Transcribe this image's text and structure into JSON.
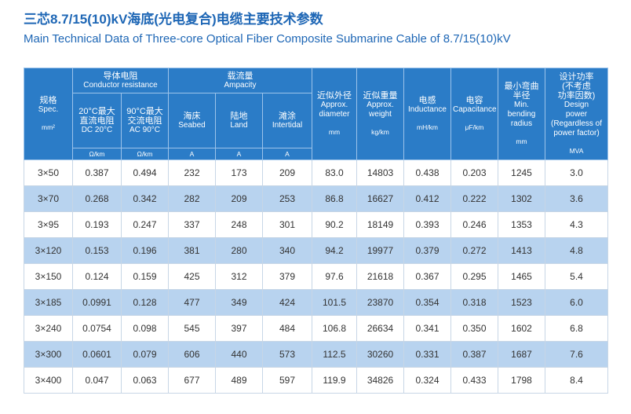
{
  "title_cn": "三芯8.7/15(10)kV海底(光电复合)电缆主要技术参数",
  "title_en": "Main Technical Data of Three-core Optical Fiber Composite Submarine Cable of 8.7/15(10)kV",
  "headers": {
    "spec": {
      "cn": "规格",
      "en": "Spec.",
      "unit": "mm²"
    },
    "conductor_resistance": {
      "cn": "导体电阻",
      "en": "Conductor resistance"
    },
    "dc20": {
      "cn1": "20°C最大",
      "cn2": "直流电阻",
      "en": "DC 20°C",
      "unit": "Ω/km"
    },
    "ac90": {
      "cn1": "90°C最大",
      "cn2": "交流电阻",
      "en": "AC 90°C",
      "unit": "Ω/km"
    },
    "ampacity": {
      "cn": "载流量",
      "en": "Ampacity"
    },
    "seabed": {
      "cn": "海床",
      "en": "Seabed",
      "unit": "A"
    },
    "land": {
      "cn": "陆地",
      "en": "Land",
      "unit": "A"
    },
    "intertidal": {
      "cn": "滩涂",
      "en": "Intertidal",
      "unit": "A"
    },
    "diameter": {
      "cn": "近似外径",
      "en1": "Approx.",
      "en2": "diameter",
      "unit": "mm"
    },
    "weight": {
      "cn": "近似重量",
      "en1": "Approx.",
      "en2": "weight",
      "unit": "kg/km"
    },
    "inductance": {
      "cn": "电感",
      "en": "Inductance",
      "unit": "mH/km"
    },
    "capacitance": {
      "cn": "电容",
      "en": "Capacitance",
      "unit": "μF/km"
    },
    "bending": {
      "cn1": "最小弯曲",
      "cn2": "半径",
      "en1": "Min.",
      "en2": "bending",
      "en3": "radius",
      "unit": "mm"
    },
    "power": {
      "cn1": "设计功率",
      "cn2": "(不考虑",
      "cn3": "功率因数)",
      "en1": "Design",
      "en2": "power",
      "en3": "(Regardless of",
      "en4": "power factor)",
      "unit": "MVA"
    }
  },
  "rows": [
    [
      "3×50",
      "0.387",
      "0.494",
      "232",
      "173",
      "209",
      "83.0",
      "14803",
      "0.438",
      "0.203",
      "1245",
      "3.0"
    ],
    [
      "3×70",
      "0.268",
      "0.342",
      "282",
      "209",
      "253",
      "86.8",
      "16627",
      "0.412",
      "0.222",
      "1302",
      "3.6"
    ],
    [
      "3×95",
      "0.193",
      "0.247",
      "337",
      "248",
      "301",
      "90.2",
      "18149",
      "0.393",
      "0.246",
      "1353",
      "4.3"
    ],
    [
      "3×120",
      "0.153",
      "0.196",
      "381",
      "280",
      "340",
      "94.2",
      "19977",
      "0.379",
      "0.272",
      "1413",
      "4.8"
    ],
    [
      "3×150",
      "0.124",
      "0.159",
      "425",
      "312",
      "379",
      "97.6",
      "21618",
      "0.367",
      "0.295",
      "1465",
      "5.4"
    ],
    [
      "3×185",
      "0.0991",
      "0.128",
      "477",
      "349",
      "424",
      "101.5",
      "23870",
      "0.354",
      "0.318",
      "1523",
      "6.0"
    ],
    [
      "3×240",
      "0.0754",
      "0.098",
      "545",
      "397",
      "484",
      "106.8",
      "26634",
      "0.341",
      "0.350",
      "1602",
      "6.8"
    ],
    [
      "3×300",
      "0.0601",
      "0.079",
      "606",
      "440",
      "573",
      "112.5",
      "30260",
      "0.331",
      "0.387",
      "1687",
      "7.6"
    ],
    [
      "3×400",
      "0.047",
      "0.063",
      "677",
      "489",
      "597",
      "119.9",
      "34826",
      "0.324",
      "0.433",
      "1798",
      "8.4"
    ]
  ],
  "colors": {
    "title": "#1d66b5",
    "header_bg": "#2b7cc7",
    "alt_row": "#b8d3ef"
  }
}
